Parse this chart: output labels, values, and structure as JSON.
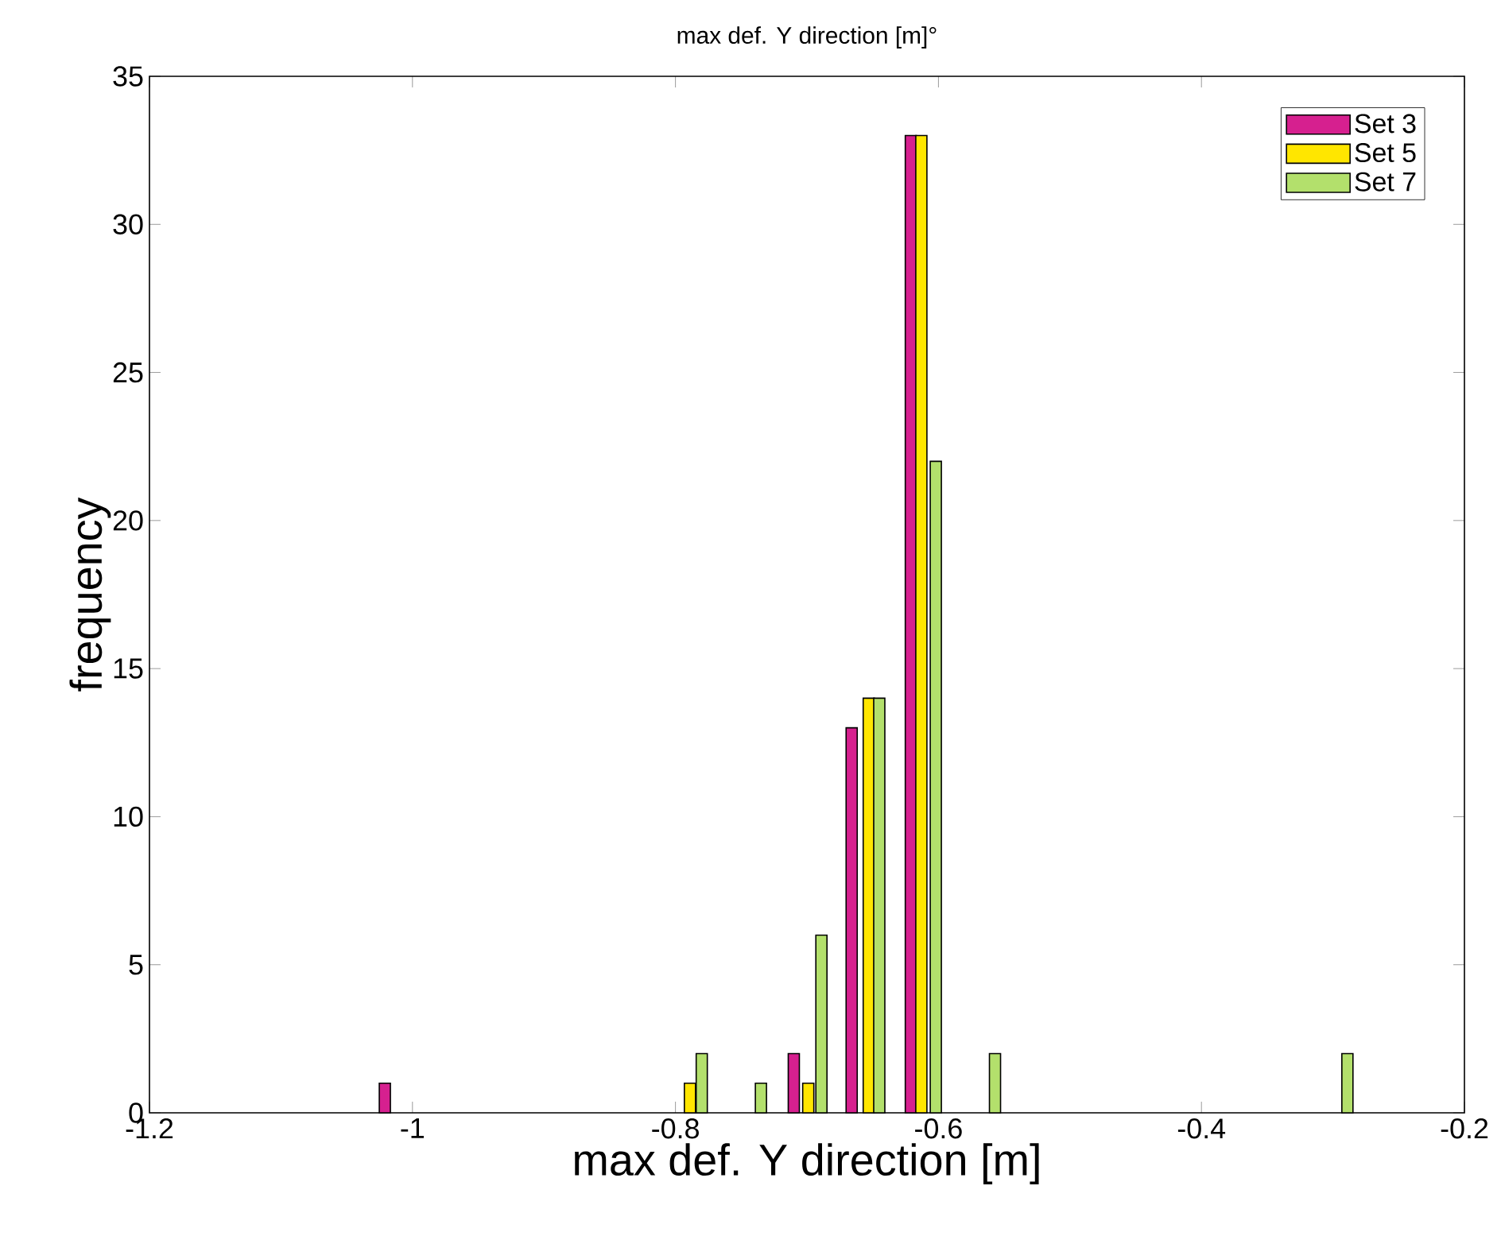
{
  "chart_data": {
    "type": "bar",
    "title": "max def. Y direction [m]°",
    "xlabel": "max def. Y direction [m]",
    "ylabel": "frequency",
    "series": [
      {
        "name": "Set 3",
        "color": "#d6208f",
        "x": [
          -1.021,
          -0.71,
          -0.666,
          -0.621
        ],
        "values": [
          1,
          2,
          13,
          33
        ]
      },
      {
        "name": "Set 5",
        "color": "#ffe600",
        "x": [
          -0.789,
          -0.699,
          -0.653,
          -0.613
        ],
        "values": [
          1,
          1,
          14,
          33
        ]
      },
      {
        "name": "Set 7",
        "color": "#b3e06c",
        "x": [
          -0.78,
          -0.735,
          -0.689,
          -0.645,
          -0.602,
          -0.557,
          -0.289
        ],
        "values": [
          2,
          1,
          6,
          14,
          22,
          2,
          2
        ]
      }
    ],
    "xlim": [
      -1.2,
      -0.2
    ],
    "xticks": [
      -1.2,
      -1,
      -0.8,
      -0.6,
      -0.4,
      -0.2
    ],
    "ylim": [
      0,
      35
    ],
    "yticks": [
      0,
      5,
      10,
      15,
      20,
      25,
      30,
      35
    ],
    "grid": false,
    "legend": "top right"
  }
}
